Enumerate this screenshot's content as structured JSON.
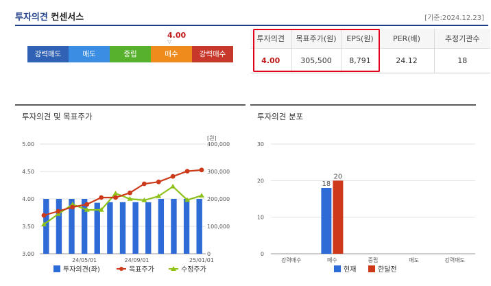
{
  "header": {
    "title_part1": "투자의견",
    "title_part2": "컨센서스",
    "base_date": "[기준:2024.12.23]"
  },
  "opinion_scale": {
    "current_value": "4.00",
    "items": [
      {
        "label": "강력매도",
        "color": "#2f62b4"
      },
      {
        "label": "매도",
        "color": "#3b8de4"
      },
      {
        "label": "중립",
        "color": "#58b12c"
      },
      {
        "label": "매수",
        "color": "#ef8b1c"
      },
      {
        "label": "강력매수",
        "color": "#c7372a"
      }
    ]
  },
  "consensus_table": {
    "headers": [
      "투자의견",
      "목표주가(원)",
      "EPS(원)",
      "PER(배)",
      "추정기관수"
    ],
    "values": [
      "4.00",
      "305,500",
      "8,791",
      "24.12",
      "18"
    ]
  },
  "panels": {
    "left_title": "투자의견 및 목표주가",
    "right_title": "투자의견 분포"
  },
  "chart_data": [
    {
      "type": "bar+line",
      "title": "투자의견 및 목표주가",
      "left_axis": {
        "ticks": [
          "5.00",
          "4.50",
          "4.00",
          "3.50",
          "3.00"
        ],
        "range": [
          3.0,
          5.0
        ]
      },
      "right_axis": {
        "unit": "[원]",
        "ticks": [
          "400,000",
          "300,000",
          "200,000",
          "100,000",
          "0"
        ],
        "range": [
          0,
          400000
        ]
      },
      "x_ticks": [
        "24/05/01",
        "24/09/01",
        "25/01/01"
      ],
      "series": [
        {
          "name": "투자의견(좌)",
          "type": "bar",
          "color": "#2f6bd6",
          "values": [
            4.0,
            4.0,
            4.0,
            4.0,
            3.93,
            3.94,
            3.94,
            3.94,
            3.94,
            4.0,
            4.0,
            4.0,
            4.0
          ]
        },
        {
          "name": "목표주가",
          "type": "line",
          "color": "#cc3a1a",
          "values": [
            140000,
            155000,
            170000,
            180000,
            205000,
            205000,
            222000,
            255000,
            262000,
            282000,
            301000,
            305500
          ]
        },
        {
          "name": "수정주가",
          "type": "line",
          "color": "#8ec21a",
          "values": [
            107000,
            145000,
            180000,
            160000,
            160000,
            220000,
            200000,
            195000,
            210000,
            245000,
            196000,
            212000
          ]
        }
      ]
    },
    {
      "type": "bar",
      "title": "투자의견 분포",
      "y_ticks": [
        "30",
        "20",
        "10",
        "0"
      ],
      "ylim": [
        0,
        30
      ],
      "categories": [
        "강력매수",
        "매수",
        "중립",
        "매도",
        "강력매도"
      ],
      "series": [
        {
          "name": "현재",
          "color": "#2f6bd6",
          "values": [
            0,
            18,
            0,
            0,
            0
          ]
        },
        {
          "name": "한달전",
          "color": "#cc3a1a",
          "values": [
            0,
            20,
            0,
            0,
            0
          ]
        }
      ],
      "data_labels": [
        "18",
        "20"
      ]
    }
  ]
}
